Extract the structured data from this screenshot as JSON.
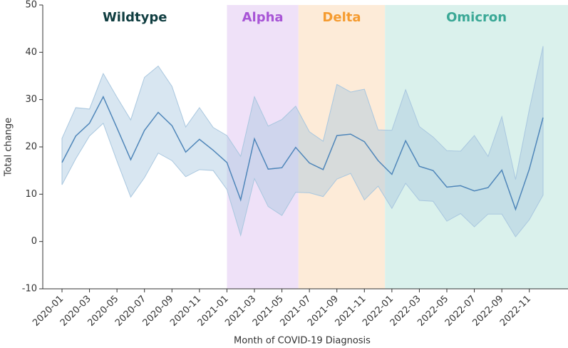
{
  "chart_data": {
    "type": "line",
    "x_label": "Month of COVID-19 Diagnosis",
    "y_label": "Total change",
    "categories": [
      "2020-01",
      null,
      "2020-03",
      null,
      "2020-05",
      null,
      "2020-07",
      null,
      "2020-09",
      null,
      "2020-11",
      null,
      "2021-01",
      null,
      "2021-03",
      null,
      "2021-05",
      null,
      "2021-07",
      null,
      "2021-09",
      null,
      "2021-11",
      null,
      "2022-01",
      null,
      "2022-03",
      null,
      "2022-05",
      null,
      "2022-07",
      null,
      "2022-09",
      null,
      "2022-11",
      null
    ],
    "series": [
      {
        "color": "#4f86b9",
        "band_color": "#a9c7df",
        "values": [
          16.7,
          22.3,
          25.0,
          30.6,
          24.0,
          17.3,
          23.5,
          27.3,
          24.5,
          18.9,
          21.6,
          19.3,
          16.7,
          8.8,
          21.7,
          15.3,
          15.6,
          19.9,
          16.6,
          15.2,
          22.4,
          22.7,
          21.1,
          17.1,
          14.2,
          21.3,
          15.9,
          15.0,
          11.5,
          11.8,
          10.7,
          11.4,
          15.1,
          6.8,
          15.3,
          26.2
        ],
        "lower": [
          12.0,
          17.5,
          22.3,
          25.0,
          17.0,
          9.4,
          13.5,
          18.7,
          17.1,
          13.7,
          15.2,
          15.0,
          11.0,
          1.3,
          13.3,
          7.4,
          5.5,
          10.4,
          10.3,
          9.5,
          13.2,
          14.4,
          8.8,
          11.7,
          7.0,
          12.3,
          8.7,
          8.5,
          4.3,
          5.9,
          3.1,
          5.8,
          5.8,
          1.0,
          4.6,
          9.8
        ],
        "upper": [
          21.8,
          28.3,
          28.0,
          35.5,
          30.5,
          25.7,
          34.7,
          37.1,
          32.8,
          24.2,
          28.3,
          24.1,
          22.4,
          18.0,
          30.6,
          24.4,
          25.8,
          28.6,
          23.2,
          21.2,
          33.2,
          31.6,
          32.2,
          23.6,
          23.5,
          32.1,
          24.3,
          22.1,
          19.2,
          19.1,
          22.4,
          18.0,
          26.4,
          13.1,
          27.9,
          41.3
        ]
      }
    ],
    "regions": [
      {
        "label": "Wildtype",
        "label_color": "#0f3d40",
        "end": 12
      },
      {
        "label": "Alpha",
        "label_color": "#a855d6",
        "color": "#efe1f8",
        "start": 12,
        "end": 17.2
      },
      {
        "label": "Delta",
        "label_color": "#f59b30",
        "color": "#fdebd8",
        "start": 17.2,
        "end": 23.5
      },
      {
        "label": "Omicron",
        "label_color": "#3aa896",
        "color": "#daf1ec",
        "start": 23.5
      }
    ],
    "ylim": [
      -10,
      50
    ],
    "yticks": [
      -10,
      0,
      10,
      20,
      30,
      40,
      50
    ]
  }
}
